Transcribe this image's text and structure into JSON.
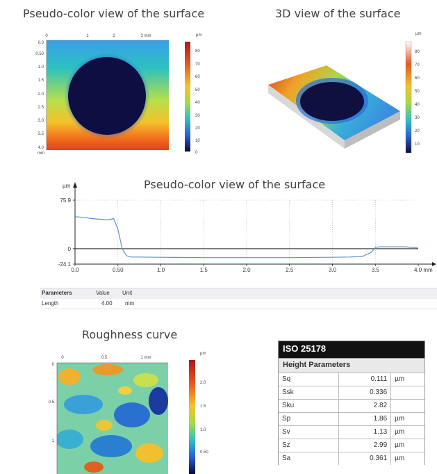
{
  "titles": {
    "pseudo_top": "Pseudo-color view of the surface",
    "view3d": "3D view of the surface",
    "profile": "Pseudo-color view of the surface",
    "roughness": "Roughness curve"
  },
  "pseudo_map": {
    "x_ticks": [
      "0",
      "1",
      "2",
      "3 mm"
    ],
    "y_ticks": [
      "0.0",
      "0.50",
      "1.0",
      "1.5",
      "2.0",
      "2.5",
      "3.0",
      "3.5",
      "4.0"
    ],
    "y_unit": "mm",
    "scale_unit": "µm",
    "scale_ticks": [
      "80",
      "70",
      "60",
      "50",
      "40",
      "30",
      "20",
      "10",
      "0"
    ]
  },
  "view3d_scale": {
    "unit": "µm",
    "ticks": [
      "80",
      "70",
      "60",
      "50",
      "40",
      "30",
      "20",
      "10"
    ]
  },
  "chart_data": {
    "type": "line",
    "title": "Pseudo-color view of the surface",
    "ylabel": "µm",
    "xlabel": "mm",
    "xlim": [
      0,
      4.0
    ],
    "ylim": [
      -24.1,
      75.9
    ],
    "y_ticks": [
      "75.9",
      "0",
      "-24.1"
    ],
    "x_ticks": [
      "0.0",
      "0.50",
      "1.0",
      "1.5",
      "2.0",
      "2.5",
      "3.0",
      "3.5",
      "4.0 mm"
    ],
    "series": [
      {
        "x": [
          0.0,
          0.1,
          0.2,
          0.3,
          0.38,
          0.45,
          0.5,
          0.55,
          0.6,
          0.65,
          0.7,
          1.0,
          1.5,
          2.0,
          2.5,
          3.0,
          3.2,
          3.35,
          3.45,
          3.5,
          3.55,
          3.7,
          3.85,
          4.0
        ],
        "y": [
          50,
          49,
          47,
          46,
          45,
          47,
          30,
          0,
          -11,
          -13,
          -13,
          -13.5,
          -14,
          -14,
          -14,
          -13.5,
          -13,
          -12,
          -6,
          2,
          3,
          3,
          3,
          1
        ]
      }
    ]
  },
  "params": {
    "headers": [
      "Parameters",
      "Value",
      "Unit"
    ],
    "rows": [
      [
        "Length",
        "4.00",
        "mm"
      ]
    ]
  },
  "roughness_map": {
    "x_ticks": [
      "0",
      "0.5",
      "1 mm"
    ],
    "y_ticks": [
      "0",
      "0.5",
      "1"
    ],
    "scale_unit": "µm",
    "scale_ticks": [
      "2.0",
      "1.5",
      "1.0",
      "0.50"
    ]
  },
  "iso": {
    "title": "ISO 25178",
    "subtitle": "Height Parameters",
    "rows": [
      {
        "name": "Sq",
        "value": "0.111",
        "unit": "µm"
      },
      {
        "name": "Ssk",
        "value": "0.336",
        "unit": ""
      },
      {
        "name": "Sku",
        "value": "2.82",
        "unit": ""
      },
      {
        "name": "Sp",
        "value": "1.86",
        "unit": "µm"
      },
      {
        "name": "Sv",
        "value": "1.13",
        "unit": "µm"
      },
      {
        "name": "Sz",
        "value": "2.99",
        "unit": "µm"
      },
      {
        "name": "Sa",
        "value": "0.361",
        "unit": "µm"
      }
    ]
  }
}
